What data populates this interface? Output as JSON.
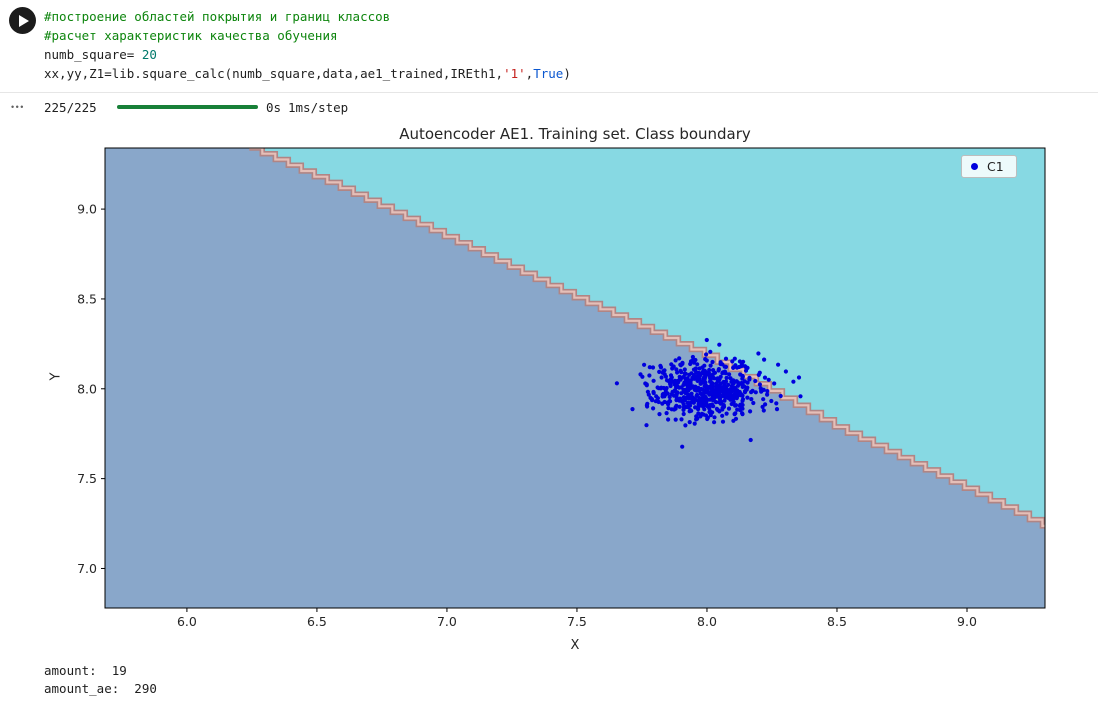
{
  "cell": {
    "syntax_colors": {
      "plain": "#1f1f1f",
      "comment": "#0d850d",
      "number": "#00796b",
      "string": "#c5221f",
      "keyword": "#0b57d0"
    },
    "code_lines": [
      [
        {
          "t": "#построение областей покрытия и границ классов",
          "c": "comment"
        }
      ],
      [
        {
          "t": "#расчет характеристик качества обучения",
          "c": "comment"
        }
      ],
      [
        {
          "t": "numb_square= ",
          "c": "plain"
        },
        {
          "t": "20",
          "c": "number"
        }
      ],
      [
        {
          "t": "xx,yy,Z1=lib.square_calc(",
          "c": "plain"
        },
        {
          "t": "numb_square,data,ae1_trained,IREth1,",
          "c": "plain"
        },
        {
          "t": "'1'",
          "c": "string"
        },
        {
          "t": ",",
          "c": "plain"
        },
        {
          "t": "True",
          "c": "keyword"
        },
        {
          "t": ")",
          "c": "plain"
        }
      ]
    ]
  },
  "progress": {
    "more_icon": "•••",
    "steps": "225/225",
    "bar_color": "#188038",
    "time": "0s",
    "rate": "1ms/step"
  },
  "outputs": {
    "lines": [
      "amount:  19",
      "amount_ae:  290"
    ]
  },
  "chart_data": {
    "type": "scatter",
    "title": "Autoencoder AE1. Training set. Class boundary",
    "xlabel": "X",
    "ylabel": "Y",
    "xlim": [
      5.685,
      9.3
    ],
    "ylim": [
      6.78,
      9.34
    ],
    "xticks": [
      "6.0",
      "6.5",
      "7.0",
      "7.5",
      "8.0",
      "8.5",
      "9.0"
    ],
    "yticks": [
      "7.0",
      "7.5",
      "8.0",
      "8.5",
      "9.0"
    ],
    "grid": false,
    "legend": {
      "position": "upper right",
      "label": "C1"
    },
    "colors": {
      "inside_region": "#89a7ca",
      "outside_region": "#87d9e3",
      "boundary_outer": "#b08585",
      "boundary_inner": "#e5bfb8",
      "points": "#0000dd"
    },
    "boundary_polyline": [
      [
        6.24,
        9.34
      ],
      [
        6.6,
        9.11
      ],
      [
        7.0,
        8.84
      ],
      [
        7.5,
        8.5
      ],
      [
        8.0,
        8.18
      ],
      [
        8.5,
        7.78
      ],
      [
        9.0,
        7.44
      ],
      [
        9.3,
        7.23
      ]
    ],
    "boundary_step_x": 0.05,
    "series": [
      {
        "name": "C1",
        "distribution": "gaussian-cluster",
        "center": [
          8.0,
          8.0
        ],
        "std": [
          0.11,
          0.085
        ],
        "count": 600,
        "seed": 7
      }
    ]
  }
}
